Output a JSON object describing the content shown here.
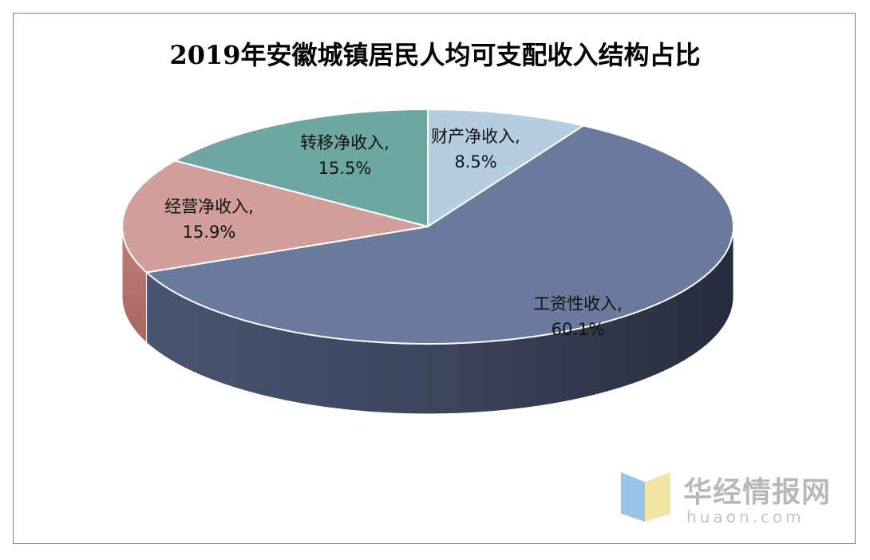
{
  "chart_data": {
    "type": "pie",
    "title": "2019年安徽城镇居民人均可支配收入结构占比",
    "unit": "%",
    "slices": [
      {
        "name": "财产净收入",
        "value": 8.5,
        "label": "财产净收入,",
        "value_label": "8.5%",
        "color": "#b4cde0"
      },
      {
        "name": "工资性收入",
        "value": 60.1,
        "label": "工资性收入,",
        "value_label": "60.1%",
        "color": "#6b7a9c"
      },
      {
        "name": "经营净收入",
        "value": 15.9,
        "label": "经营净收入,",
        "value_label": "15.9%",
        "color": "#d19e9a"
      },
      {
        "name": "转移净收入",
        "value": 15.5,
        "label": "转移净收入,",
        "value_label": "15.5%",
        "color": "#6ea7a2"
      }
    ]
  },
  "watermark": {
    "text_cn": "华经情报网",
    "text_en": "huaon.com",
    "logo_colors": [
      "#9cc3e8",
      "#f3e3a3"
    ]
  }
}
